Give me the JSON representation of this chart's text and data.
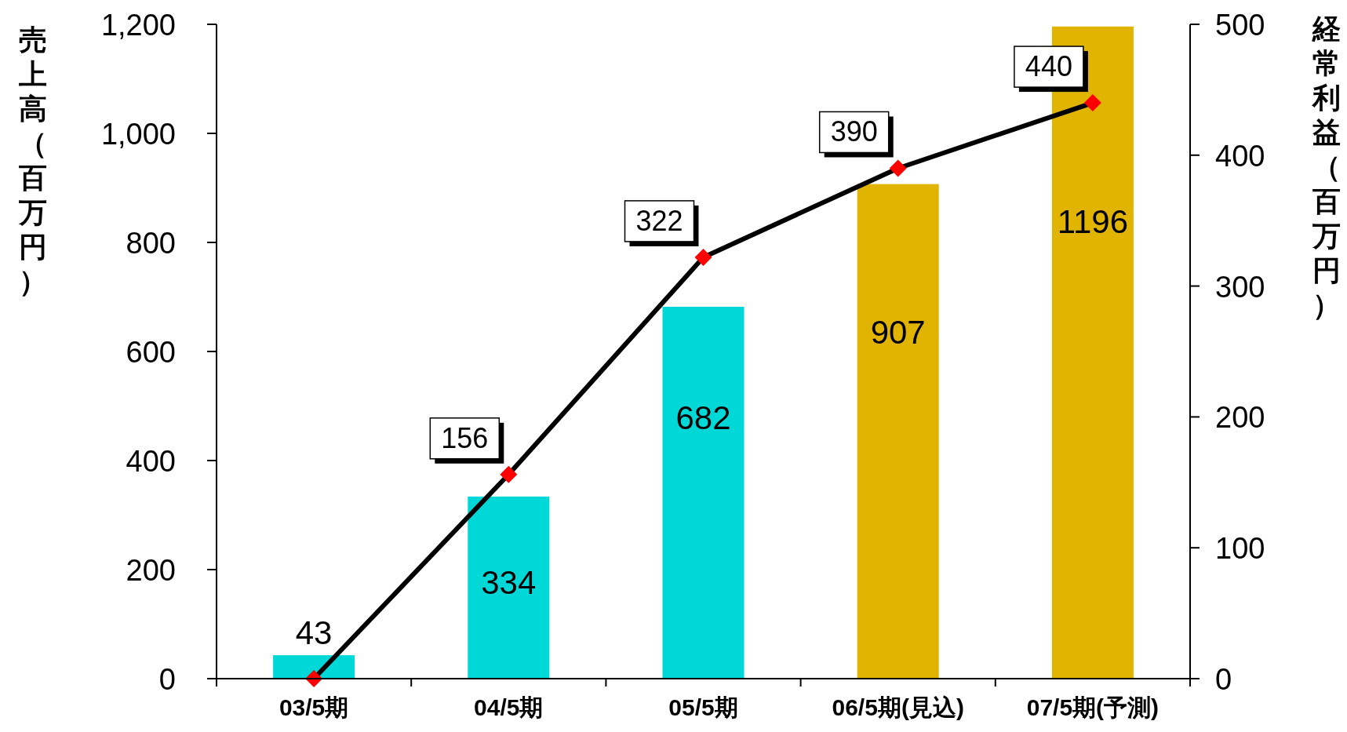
{
  "chart_data": {
    "type": "bar",
    "ylabel": "売上高（百万円）",
    "y2label": "経常利益（百万円）",
    "categories": [
      "03/5期",
      "04/5期",
      "05/5期",
      "06/5期(見込)",
      "07/5期(予測)"
    ],
    "ylim": [
      0,
      1200
    ],
    "yticks": [
      0,
      200,
      400,
      600,
      {
        "value": 800,
        "label": "800"
      },
      {
        "value": 1000,
        "label": "1,000"
      },
      {
        "value": 1200,
        "label": "1,200"
      }
    ],
    "y2lim": [
      0,
      500
    ],
    "y2ticks": [
      0,
      100,
      200,
      300,
      400,
      500
    ],
    "grid": false,
    "series": [
      {
        "values": [
          43,
          334,
          682,
          907,
          1196
        ],
        "colors": [
          "#00d8d8",
          "#00d8d8",
          "#00d8d8",
          "#e0b400",
          "#e0b400"
        ],
        "data_labels": true
      },
      {
        "type": "line",
        "axis": "y2",
        "color": "#000000",
        "marker": "diamond",
        "colors": [
          "#ff0000",
          "#ff0000",
          "#ff0000",
          "#ff0000",
          "#ff0000"
        ],
        "values": [
          0,
          156,
          322,
          390,
          440
        ],
        "value_labels": [
          null,
          "156",
          "322",
          "390",
          "440"
        ]
      }
    ]
  }
}
